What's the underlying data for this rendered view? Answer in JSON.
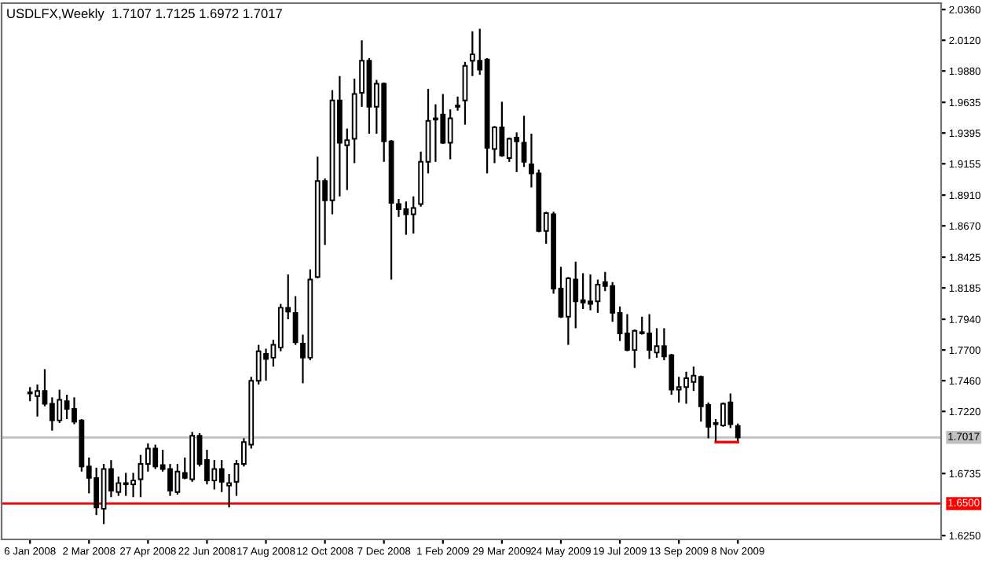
{
  "chart_data": {
    "type": "candlestick",
    "title": "USDLFX,Weekly  1.7107 1.7125 1.6972 1.7017",
    "color": "#000000",
    "x": [
      "2008-01-06",
      "2008-01-13",
      "2008-01-20",
      "2008-01-27",
      "2008-02-03",
      "2008-02-10",
      "2008-02-17",
      "2008-02-24",
      "2008-03-02",
      "2008-03-09",
      "2008-03-16",
      "2008-03-23",
      "2008-03-30",
      "2008-04-06",
      "2008-04-13",
      "2008-04-20",
      "2008-04-27",
      "2008-05-04",
      "2008-05-11",
      "2008-05-18",
      "2008-05-25",
      "2008-06-01",
      "2008-06-08",
      "2008-06-15",
      "2008-06-22",
      "2008-06-29",
      "2008-07-06",
      "2008-07-13",
      "2008-07-20",
      "2008-07-27",
      "2008-08-03",
      "2008-08-10",
      "2008-08-17",
      "2008-08-24",
      "2008-08-31",
      "2008-09-07",
      "2008-09-14",
      "2008-09-21",
      "2008-09-28",
      "2008-10-05",
      "2008-10-12",
      "2008-10-19",
      "2008-10-26",
      "2008-11-02",
      "2008-11-09",
      "2008-11-16",
      "2008-11-23",
      "2008-11-30",
      "2008-12-07",
      "2008-12-14",
      "2008-12-21",
      "2008-12-28",
      "2009-01-04",
      "2009-01-11",
      "2009-01-18",
      "2009-01-25",
      "2009-02-01",
      "2009-02-08",
      "2009-02-15",
      "2009-02-22",
      "2009-03-01",
      "2009-03-08",
      "2009-03-15",
      "2009-03-22",
      "2009-03-29",
      "2009-04-05",
      "2009-04-12",
      "2009-04-19",
      "2009-04-26",
      "2009-05-03",
      "2009-05-10",
      "2009-05-17",
      "2009-05-24",
      "2009-05-31",
      "2009-06-07",
      "2009-06-14",
      "2009-06-21",
      "2009-06-28",
      "2009-07-05",
      "2009-07-12",
      "2009-07-19",
      "2009-07-26",
      "2009-08-02",
      "2009-08-09",
      "2009-08-16",
      "2009-08-23",
      "2009-08-30",
      "2009-09-06",
      "2009-09-13",
      "2009-09-20",
      "2009-09-27",
      "2009-10-04",
      "2009-10-11",
      "2009-10-18",
      "2009-10-25",
      "2009-11-01",
      "2009-11-08"
    ],
    "ohlc": [
      [
        1.737,
        1.741,
        1.73,
        1.736
      ],
      [
        1.734,
        1.743,
        1.718,
        1.738
      ],
      [
        1.738,
        1.755,
        1.726,
        1.728
      ],
      [
        1.728,
        1.733,
        1.707,
        1.715
      ],
      [
        1.715,
        1.739,
        1.713,
        1.731
      ],
      [
        1.73,
        1.735,
        1.716,
        1.724
      ],
      [
        1.724,
        1.733,
        1.712,
        1.714
      ],
      [
        1.715,
        1.716,
        1.675,
        1.679
      ],
      [
        1.679,
        1.686,
        1.658,
        1.67
      ],
      [
        1.67,
        1.678,
        1.641,
        1.647
      ],
      [
        1.646,
        1.681,
        1.634,
        1.677
      ],
      [
        1.677,
        1.684,
        1.655,
        1.66
      ],
      [
        1.659,
        1.671,
        1.656,
        1.666
      ],
      [
        1.666,
        1.674,
        1.656,
        1.665
      ],
      [
        1.665,
        1.674,
        1.655,
        1.668
      ],
      [
        1.669,
        1.688,
        1.655,
        1.681
      ],
      [
        1.681,
        1.697,
        1.675,
        1.693
      ],
      [
        1.693,
        1.696,
        1.677,
        1.679
      ],
      [
        1.68,
        1.692,
        1.675,
        1.677
      ],
      [
        1.677,
        1.681,
        1.656,
        1.66
      ],
      [
        1.659,
        1.681,
        1.657,
        1.675
      ],
      [
        1.674,
        1.686,
        1.669,
        1.67
      ],
      [
        1.669,
        1.706,
        1.667,
        1.703
      ],
      [
        1.703,
        1.705,
        1.679,
        1.681
      ],
      [
        1.684,
        1.692,
        1.665,
        1.668
      ],
      [
        1.668,
        1.684,
        1.661,
        1.677
      ],
      [
        1.677,
        1.684,
        1.659,
        1.667
      ],
      [
        1.664,
        1.673,
        1.647,
        1.666
      ],
      [
        1.667,
        1.684,
        1.656,
        1.681
      ],
      [
        1.681,
        1.701,
        1.679,
        1.698
      ],
      [
        1.696,
        1.749,
        1.693,
        1.746
      ],
      [
        1.746,
        1.774,
        1.743,
        1.769
      ],
      [
        1.767,
        1.771,
        1.746,
        1.763
      ],
      [
        1.764,
        1.778,
        1.757,
        1.774
      ],
      [
        1.772,
        1.806,
        1.769,
        1.803
      ],
      [
        1.803,
        1.829,
        1.794,
        1.8
      ],
      [
        1.799,
        1.812,
        1.774,
        1.776
      ],
      [
        1.775,
        1.782,
        1.744,
        1.764
      ],
      [
        1.764,
        1.833,
        1.762,
        1.825
      ],
      [
        1.827,
        1.921,
        1.826,
        1.902
      ],
      [
        1.902,
        1.904,
        1.852,
        1.887
      ],
      [
        1.887,
        1.973,
        1.876,
        1.965
      ],
      [
        1.965,
        1.984,
        1.89,
        1.932
      ],
      [
        1.93,
        1.943,
        1.895,
        1.934
      ],
      [
        1.935,
        1.982,
        1.916,
        1.97
      ],
      [
        1.971,
        2.012,
        1.96,
        1.996
      ],
      [
        1.996,
        1.998,
        1.939,
        1.96
      ],
      [
        1.96,
        1.981,
        1.939,
        1.978
      ],
      [
        1.978,
        1.979,
        1.917,
        1.933
      ],
      [
        1.933,
        1.934,
        1.825,
        1.885
      ],
      [
        1.884,
        1.888,
        1.874,
        1.88
      ],
      [
        1.88,
        1.886,
        1.86,
        1.876
      ],
      [
        1.876,
        1.89,
        1.861,
        1.881
      ],
      [
        1.884,
        1.925,
        1.882,
        1.917
      ],
      [
        1.917,
        1.974,
        1.908,
        1.949
      ],
      [
        1.951,
        1.962,
        1.917,
        1.95
      ],
      [
        1.954,
        1.97,
        1.931,
        1.932
      ],
      [
        1.932,
        1.958,
        1.919,
        1.951
      ],
      [
        1.961,
        1.968,
        1.957,
        1.96
      ],
      [
        1.965,
        1.995,
        1.946,
        1.992
      ],
      [
        1.996,
        2.019,
        1.984,
        2.001
      ],
      [
        1.996,
        2.021,
        1.985,
        1.989
      ],
      [
        1.997,
        1.998,
        1.908,
        1.928
      ],
      [
        1.927,
        1.945,
        1.916,
        1.944
      ],
      [
        1.944,
        1.964,
        1.921,
        1.922
      ],
      [
        1.92,
        1.936,
        1.917,
        1.935
      ],
      [
        1.936,
        1.94,
        1.909,
        1.933
      ],
      [
        1.932,
        1.953,
        1.913,
        1.917
      ],
      [
        1.915,
        1.939,
        1.897,
        1.908
      ],
      [
        1.908,
        1.911,
        1.862,
        1.863
      ],
      [
        1.863,
        1.878,
        1.853,
        1.877
      ],
      [
        1.876,
        1.878,
        1.814,
        1.818
      ],
      [
        1.818,
        1.835,
        1.795,
        1.796
      ],
      [
        1.796,
        1.827,
        1.774,
        1.826
      ],
      [
        1.825,
        1.839,
        1.787,
        1.808
      ],
      [
        1.809,
        1.83,
        1.802,
        1.807
      ],
      [
        1.808,
        1.829,
        1.801,
        1.806
      ],
      [
        1.808,
        1.825,
        1.799,
        1.821
      ],
      [
        1.823,
        1.831,
        1.816,
        1.82
      ],
      [
        1.82,
        1.823,
        1.792,
        1.799
      ],
      [
        1.799,
        1.804,
        1.777,
        1.783
      ],
      [
        1.783,
        1.798,
        1.769,
        1.77
      ],
      [
        1.77,
        1.786,
        1.756,
        1.785
      ],
      [
        1.784,
        1.796,
        1.782,
        1.783
      ],
      [
        1.783,
        1.798,
        1.763,
        1.77
      ],
      [
        1.768,
        1.787,
        1.764,
        1.773
      ],
      [
        1.773,
        1.787,
        1.762,
        1.765
      ],
      [
        1.766,
        1.767,
        1.735,
        1.739
      ],
      [
        1.739,
        1.749,
        1.729,
        1.741
      ],
      [
        1.741,
        1.753,
        1.728,
        1.748
      ],
      [
        1.745,
        1.757,
        1.738,
        1.75
      ],
      [
        1.749,
        1.75,
        1.714,
        1.726
      ],
      [
        1.727,
        1.729,
        1.701,
        1.71
      ],
      [
        1.713,
        1.716,
        1.698,
        1.712
      ],
      [
        1.711,
        1.729,
        1.71,
        1.728
      ],
      [
        1.729,
        1.736,
        1.709,
        1.712
      ],
      [
        1.7107,
        1.7125,
        1.6972,
        1.7017
      ]
    ],
    "series": [
      {
        "type": "line",
        "x": [
          "2009-10-18",
          "2009-11-08"
        ],
        "values": [
          1.698,
          1.698
        ],
        "color": "#ff0000"
      }
    ],
    "xlim": [
      "2007-12-10",
      "2010-05-20"
    ],
    "xticks": [
      {
        "value": "2008-01-06",
        "label": "6 Jan 2008"
      },
      {
        "value": "2008-03-02",
        "label": "2 Mar 2008"
      },
      {
        "value": "2008-04-27",
        "label": "27 Apr 2008"
      },
      {
        "value": "2008-06-22",
        "label": "22 Jun 2008"
      },
      {
        "value": "2008-08-17",
        "label": "17 Aug 2008"
      },
      {
        "value": "2008-10-12",
        "label": "12 Oct 2008"
      },
      {
        "value": "2008-12-07",
        "label": "7 Dec 2008"
      },
      {
        "value": "2009-02-01",
        "label": "1 Feb 2009"
      },
      {
        "value": "2009-03-29",
        "label": "29 Mar 2009"
      },
      {
        "value": "2009-05-24",
        "label": "24 May 2009"
      },
      {
        "value": "2009-07-19",
        "label": "19 Jul 2009"
      },
      {
        "value": "2009-09-13",
        "label": "13 Sep 2009"
      },
      {
        "value": "2009-11-08",
        "label": "8 Nov 2009"
      }
    ],
    "ylim": [
      1.622,
      2.041
    ],
    "yticks": [
      {
        "value": 2.036,
        "label": "2.0360"
      },
      {
        "value": 2.012,
        "label": "2.0120"
      },
      {
        "value": 1.988,
        "label": "1.9880"
      },
      {
        "value": 1.9635,
        "label": "1.9635"
      },
      {
        "value": 1.9395,
        "label": "1.9395"
      },
      {
        "value": 1.9155,
        "label": "1.9155"
      },
      {
        "value": 1.891,
        "label": "1.8910"
      },
      {
        "value": 1.867,
        "label": "1.8670"
      },
      {
        "value": 1.8425,
        "label": "1.8425"
      },
      {
        "value": 1.8185,
        "label": "1.8185"
      },
      {
        "value": 1.794,
        "label": "1.7940"
      },
      {
        "value": 1.77,
        "label": "1.7700"
      },
      {
        "value": 1.746,
        "label": "1.7460"
      },
      {
        "value": 1.722,
        "label": "1.7220"
      },
      {
        "value": 1.6735,
        "label": "1.6735"
      },
      {
        "value": 1.625,
        "label": "1.6250"
      }
    ],
    "ref_lines": [
      {
        "axis": "y",
        "value": 1.7017,
        "label": "1.7017",
        "color": "#c0c0c0"
      },
      {
        "axis": "y",
        "value": 1.65,
        "label": "1.6500",
        "color": "#ff0000"
      }
    ],
    "grid": false
  }
}
